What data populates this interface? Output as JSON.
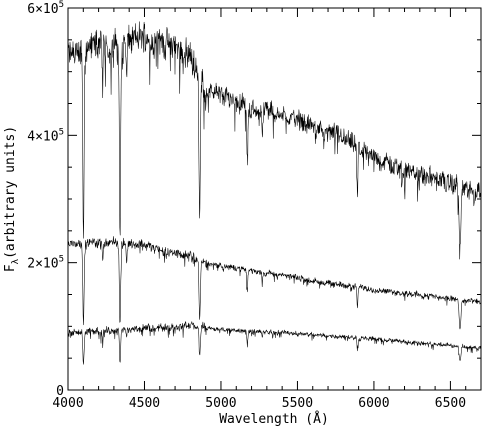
{
  "chart_data": {
    "type": "line",
    "title": "",
    "xlabel": "Wavelength (Å)",
    "ylabel_main": "F",
    "ylabel_sub": "λ",
    "ylabel_rest": "(arbitrary units)",
    "xlim": [
      4000,
      6700
    ],
    "ylim": [
      0,
      600000
    ],
    "x_ticks": [
      4000,
      4500,
      5000,
      5500,
      6000,
      6500
    ],
    "x_tick_labels": [
      "4000",
      "4500",
      "5000",
      "5500",
      "6000",
      "6500"
    ],
    "y_ticks": [
      0,
      200000,
      400000,
      600000
    ],
    "y_tick_labels": [
      {
        "mantissa": "0",
        "exp": ""
      },
      {
        "mantissa": "2×10",
        "exp": "5"
      },
      {
        "mantissa": "4×10",
        "exp": "5"
      },
      {
        "mantissa": "6×10",
        "exp": "5"
      }
    ],
    "grid": false,
    "legend": "none",
    "line_color": "#000000",
    "absorption_lines": [
      {
        "x": 4101,
        "depth": 0.55,
        "width": 6
      },
      {
        "x": 4227,
        "depth": 0.12,
        "width": 4
      },
      {
        "x": 4340,
        "depth": 0.55,
        "width": 6
      },
      {
        "x": 4383,
        "depth": 0.12,
        "width": 4
      },
      {
        "x": 4861,
        "depth": 0.45,
        "width": 6
      },
      {
        "x": 5172,
        "depth": 0.18,
        "width": 5
      },
      {
        "x": 5270,
        "depth": 0.08,
        "width": 4
      },
      {
        "x": 5892,
        "depth": 0.22,
        "width": 4
      },
      {
        "x": 6563,
        "depth": 0.32,
        "width": 8
      }
    ],
    "series": [
      {
        "continuum_x": [
          4000,
          4100,
          4200,
          4300,
          4400,
          4500,
          4600,
          4700,
          4800,
          4850,
          4900,
          5000,
          5100,
          5200,
          5300,
          5400,
          5500,
          5600,
          5700,
          5800,
          5900,
          6000,
          6100,
          6200,
          6300,
          6400,
          6500,
          6600,
          6700
        ],
        "continuum_y": [
          525000,
          535000,
          545000,
          540000,
          548000,
          556000,
          548000,
          540000,
          525000,
          500000,
          470000,
          465000,
          455000,
          440000,
          440000,
          432000,
          425000,
          415000,
          405000,
          395000,
          380000,
          365000,
          355000,
          345000,
          338000,
          332000,
          325000,
          316000,
          308000
        ],
        "noise": 30000
      },
      {
        "continuum_x": [
          4000,
          4100,
          4200,
          4300,
          4400,
          4500,
          4600,
          4700,
          4800,
          4900,
          5000,
          5200,
          5400,
          5600,
          5800,
          6000,
          6200,
          6400,
          6500,
          6600,
          6700
        ],
        "continuum_y": [
          232000,
          230000,
          232000,
          232000,
          230000,
          228000,
          220000,
          215000,
          210000,
          200000,
          195000,
          188000,
          180000,
          172000,
          165000,
          158000,
          152000,
          147000,
          143000,
          140000,
          138000
        ],
        "noise": 9000
      },
      {
        "continuum_x": [
          4000,
          4200,
          4400,
          4600,
          4800,
          5000,
          5200,
          5400,
          5600,
          5800,
          6000,
          6200,
          6400,
          6600,
          6700
        ],
        "continuum_y": [
          90000,
          92000,
          95000,
          98000,
          101000,
          95000,
          92000,
          90000,
          87000,
          84000,
          80000,
          76000,
          72000,
          68000,
          66000
        ],
        "noise": 7000
      }
    ]
  }
}
